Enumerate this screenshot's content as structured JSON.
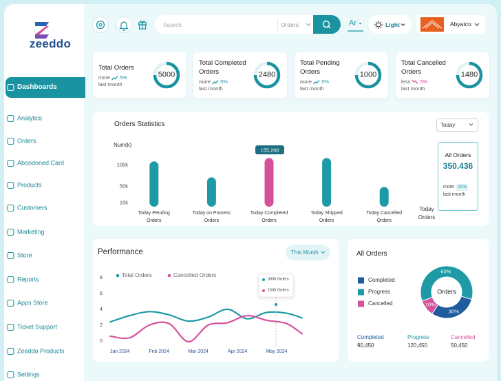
{
  "brand": "zeeddo",
  "sidebar": {
    "active": 0,
    "items": [
      "Dashboards",
      "Analytics",
      "Orders",
      "Abondoned Card",
      "Products",
      "Customers",
      "Marketing",
      "Store",
      "Reports",
      "Apps Store",
      "Ticket Support",
      "Zeeddo Products",
      "Settings"
    ]
  },
  "topbar": {
    "search": "Search",
    "scope": "Orders",
    "language": "Ar",
    "theme": "Light",
    "account": "Abyatco"
  },
  "stat_cards": [
    {
      "title": "Total Orders",
      "trend": "more",
      "change": "5%",
      "period": "last month",
      "value": 5000,
      "arrow": "up",
      "trend_color": "#1a93a0"
    },
    {
      "title": "Total Completed Orders",
      "trend": "more",
      "change": "5%",
      "period": "last month",
      "value": 2480,
      "arrow": "up",
      "trend_color": "#1a93a0"
    },
    {
      "title": "Total Pending Orders",
      "trend": "more",
      "change": "5%",
      "period": "last month",
      "value": 1000,
      "arrow": "up",
      "trend_color": "#1a93a0"
    },
    {
      "title": "Total Cancelled Orders",
      "trend": "less",
      "change": "5%",
      "period": "last month",
      "value": 1480,
      "arrow": "down",
      "trend_color": "#d64f9e"
    }
  ],
  "chart_data": [
    {
      "type": "bar",
      "title": "Orders Statistics",
      "filter": "Today",
      "y_label": "Num(k)",
      "categories": [
        "Today Pending Orders",
        "Today on Process Orders",
        "Today Completed Orders",
        "Today Shipped Orders",
        "Today Cancelled Orders"
      ],
      "values": [
        108000,
        70000,
        116000,
        116000,
        47000
      ],
      "colors": [
        "#1d9aa6",
        "#1d9aa6",
        "#d6519c",
        "#1d9aa6",
        "#1d9aa6"
      ],
      "ylim": [
        0,
        120000
      ],
      "yticks": [
        {
          "value": 10000,
          "label": "10k"
        },
        {
          "value": 50000,
          "label": "50k"
        },
        {
          "value": 100000,
          "label": "100k"
        }
      ],
      "annotation": "155,200",
      "extra_label": "Today Orders",
      "summary": {
        "title": "All Orders",
        "value": "350.436",
        "trend": "more",
        "change": "20%",
        "period": "last month"
      }
    },
    {
      "type": "line",
      "title": "Performance",
      "filter": "This Month",
      "x": [
        0.75,
        1.25,
        1.75,
        2.25,
        2.75,
        3.25,
        3.75,
        4.25,
        4.75,
        5.25,
        5.65
      ],
      "xlim": [
        0.75,
        5.65
      ],
      "xticks": [
        {
          "value": 1,
          "label": "Jan 2024"
        },
        {
          "value": 2,
          "label": "Feb 2024"
        },
        {
          "value": 3,
          "label": "Mar 2024"
        },
        {
          "value": 4,
          "label": "Apr 2024"
        },
        {
          "value": 5,
          "label": "May 2024"
        }
      ],
      "ylim": [
        0,
        8
      ],
      "yticks": [
        0,
        2,
        4,
        6,
        8
      ],
      "series": [
        {
          "name": "Total Orders",
          "color": "#1d9aa6",
          "values": [
            2.5,
            3.3,
            3.8,
            3.4,
            2.6,
            3.1,
            4.1,
            2.9,
            3.7,
            3.6,
            3.0
          ]
        },
        {
          "name": "Cancelled Orders",
          "color": "#d6519c",
          "values": [
            0.7,
            0.5,
            2.1,
            2.3,
            0.0,
            2.1,
            2.4,
            3.3,
            2.7,
            2.3,
            1.0
          ]
        }
      ],
      "annotations": [
        "3000 Orders",
        "1500 Orders"
      ]
    },
    {
      "type": "pie",
      "title": "All Orders",
      "center_label": "Orders",
      "categories": [
        "Completed",
        "Progress",
        "Cancelled"
      ],
      "values": [
        30,
        60,
        10
      ],
      "value_labels": [
        "30%",
        "60%",
        "10%"
      ],
      "colors": [
        "#1f5c9e",
        "#1d9aa6",
        "#d6519c"
      ],
      "totals": [
        "90,450",
        "120,450",
        "50,450"
      ]
    }
  ]
}
